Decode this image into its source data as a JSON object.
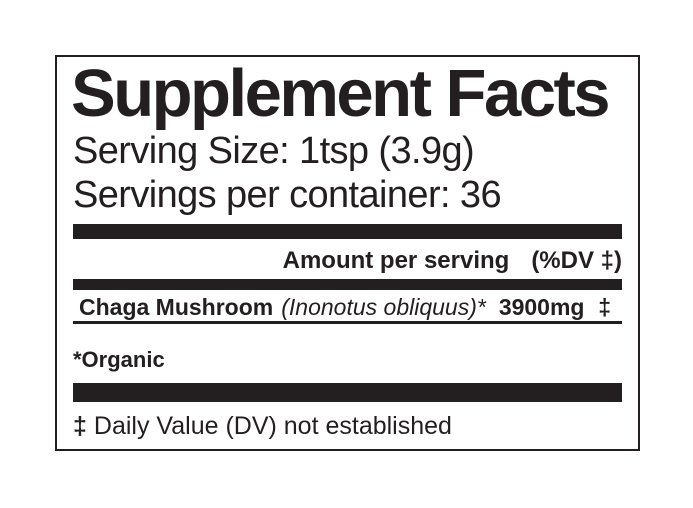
{
  "label": {
    "title": "Supplement Facts",
    "serving_size": "Serving Size: 1tsp (3.9g)",
    "servings_per_container": "Servings per container: 36",
    "header": {
      "amount_per_serving": "Amount per serving",
      "dv_header": "(%DV ‡)"
    },
    "rows": [
      {
        "name": "Chaga Mushroom",
        "latin": "(Inonotus obliquus)*",
        "amount": "3900mg",
        "dv": "‡"
      }
    ],
    "organic_note": "*Organic",
    "footnote": {
      "symbol": "‡",
      "text": "Daily Value (DV) not established"
    }
  },
  "colors": {
    "ink": "#231f20",
    "background": "#ffffff"
  }
}
